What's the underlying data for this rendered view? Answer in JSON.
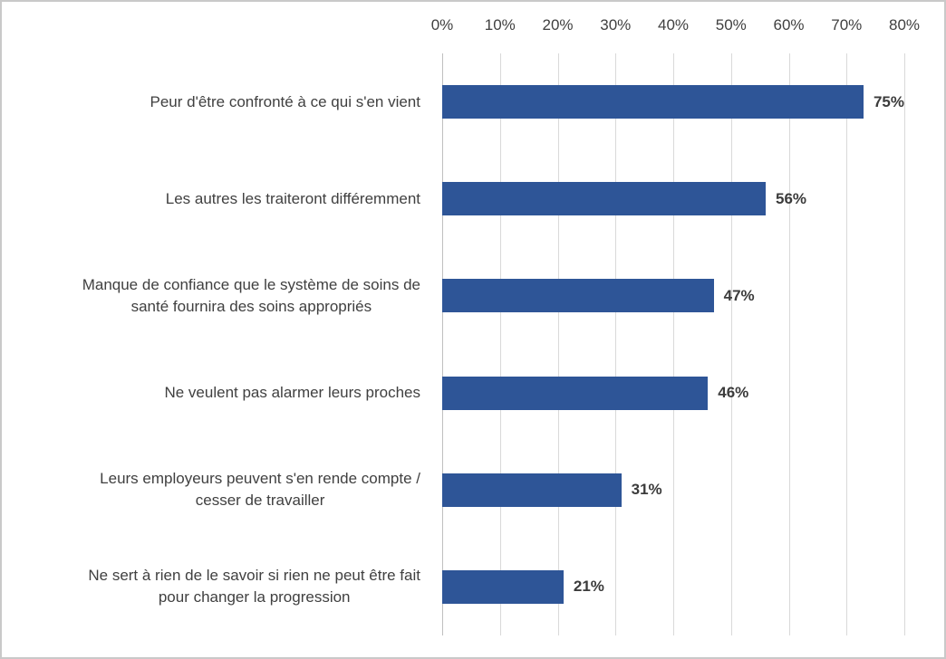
{
  "chart_data": {
    "type": "bar",
    "orientation": "horizontal",
    "title": "",
    "xlabel": "",
    "ylabel": "",
    "xlim": [
      0,
      80
    ],
    "grid": true,
    "legend": "none",
    "bar_color": "#2e5597",
    "gridline_color": "#d9d9d9",
    "ticks": [
      "0%",
      "10%",
      "20%",
      "30%",
      "40%",
      "50%",
      "60%",
      "70%",
      "80%"
    ],
    "tick_values": [
      0,
      10,
      20,
      30,
      40,
      50,
      60,
      70,
      80
    ],
    "categories": [
      "Peur d'être confronté à ce qui s'en vient",
      "Les autres les traiteront différemment",
      "Manque de confiance que le système de soins de santé fournira des soins appropriés",
      "Ne veulent pas alarmer leurs proches",
      "Leurs employeurs peuvent s'en rende compte / cesser de travailler",
      "Ne sert à rien de le savoir si rien ne peut être fait pour changer la progression"
    ],
    "label_lines": [
      [
        "Peur d'être confronté à ce qui s'en vient"
      ],
      [
        "Les autres les traiteront différemment"
      ],
      [
        "Manque de confiance que le système de soins de",
        "santé fournira des soins appropriés"
      ],
      [
        "Ne veulent pas alarmer leurs proches"
      ],
      [
        "Leurs employeurs peuvent s'en rende compte /",
        "cesser de travailler"
      ],
      [
        "Ne sert à rien de le savoir si rien ne peut être fait",
        "pour changer la progression"
      ]
    ],
    "values": [
      75,
      56,
      47,
      46,
      31,
      21
    ],
    "value_labels": [
      "75%",
      "56%",
      "47%",
      "46%",
      "31%",
      "21%"
    ]
  }
}
